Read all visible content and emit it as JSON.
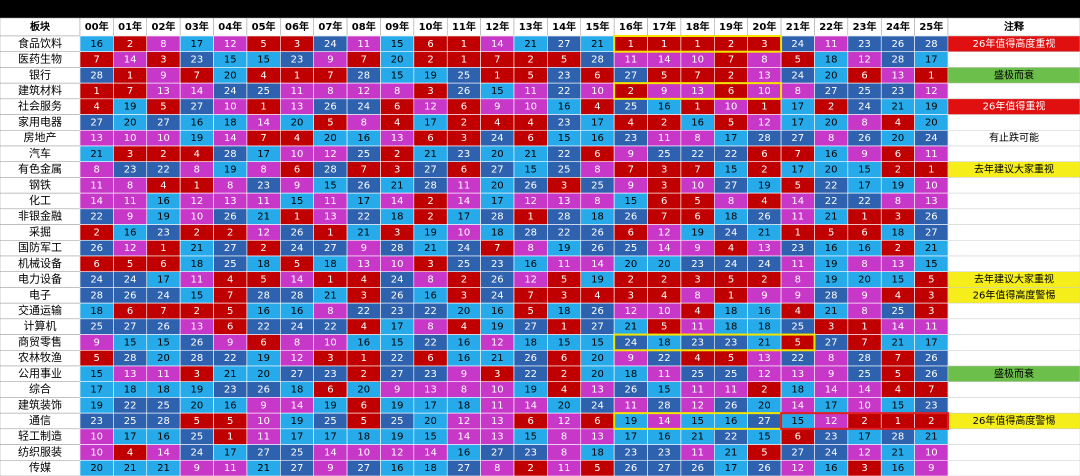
{
  "table": {
    "columns": [
      "板块",
      "00年",
      "01年",
      "02年",
      "03年",
      "04年",
      "05年",
      "06年",
      "07年",
      "08年",
      "09年",
      "10年",
      "11年",
      "12年",
      "13年",
      "14年",
      "15年",
      "16年",
      "17年",
      "18年",
      "19年",
      "20年",
      "21年",
      "22年",
      "23年",
      "24年",
      "25年",
      "注释"
    ],
    "rank_colors": [
      "#c00000",
      "#c838c8",
      "#26aaea",
      "#2e62ae"
    ],
    "rows": [
      {
        "name": "食品饮料",
        "values": [
          16,
          2,
          8,
          17,
          12,
          5,
          3,
          24,
          11,
          15,
          6,
          1,
          14,
          21,
          27,
          21,
          1,
          1,
          1,
          2,
          3,
          24,
          11,
          23,
          26,
          28
        ],
        "note": "26年值得高度重视",
        "note_color": "#e01010"
      },
      {
        "name": "医药生物",
        "values": [
          7,
          14,
          3,
          23,
          15,
          15,
          23,
          9,
          7,
          20,
          2,
          1,
          7,
          2,
          5,
          28,
          11,
          14,
          10,
          7,
          8,
          5,
          18,
          12,
          28,
          17
        ]
      },
      {
        "name": "银行",
        "values": [
          28,
          1,
          9,
          7,
          20,
          4,
          1,
          7,
          28,
          15,
          19,
          25,
          1,
          5,
          23,
          6,
          27,
          5,
          7,
          2,
          13,
          24,
          20,
          6,
          13,
          1
        ],
        "note": "盛极而衰",
        "note_color": "#6cbf4a"
      },
      {
        "name": "建筑材料",
        "values": [
          1,
          7,
          13,
          14,
          24,
          25,
          11,
          8,
          12,
          8,
          3,
          26,
          15,
          11,
          22,
          10,
          2,
          9,
          13,
          6,
          10,
          8,
          27,
          25,
          23,
          12
        ]
      },
      {
        "name": "社会服务",
        "values": [
          4,
          19,
          5,
          27,
          10,
          1,
          13,
          26,
          24,
          6,
          12,
          6,
          9,
          10,
          16,
          4,
          25,
          16,
          1,
          10,
          1,
          17,
          2,
          24,
          21,
          19
        ],
        "note": "26年值得重视",
        "note_color": "#e01010"
      },
      {
        "name": "家用电器",
        "values": [
          27,
          20,
          27,
          16,
          18,
          14,
          20,
          5,
          8,
          4,
          17,
          2,
          4,
          4,
          23,
          17,
          4,
          2,
          16,
          5,
          12,
          17,
          20,
          8,
          4,
          20
        ]
      },
      {
        "name": "房地产",
        "values": [
          13,
          10,
          10,
          19,
          14,
          7,
          4,
          20,
          16,
          13,
          6,
          3,
          24,
          6,
          15,
          16,
          23,
          11,
          8,
          17,
          28,
          27,
          8,
          26,
          20,
          24
        ],
        "note": "有止跌可能",
        "note_color": "#ffffff"
      },
      {
        "name": "汽车",
        "values": [
          21,
          3,
          2,
          4,
          28,
          17,
          10,
          12,
          25,
          2,
          21,
          23,
          20,
          21,
          22,
          6,
          9,
          25,
          22,
          22,
          6,
          7,
          16,
          9,
          6,
          11
        ]
      },
      {
        "name": "有色金属",
        "values": [
          8,
          23,
          22,
          8,
          19,
          8,
          6,
          28,
          7,
          3,
          27,
          6,
          27,
          15,
          25,
          8,
          7,
          3,
          7,
          15,
          2,
          17,
          20,
          15,
          2,
          1
        ],
        "note": "去年建议大家重视",
        "note_color": "#f5ee1a"
      },
      {
        "name": "钢铁",
        "values": [
          11,
          8,
          4,
          1,
          8,
          23,
          9,
          15,
          26,
          21,
          28,
          11,
          20,
          26,
          3,
          25,
          9,
          3,
          10,
          27,
          19,
          5,
          22,
          17,
          19,
          10
        ]
      },
      {
        "name": "化工",
        "values": [
          14,
          11,
          16,
          12,
          13,
          11,
          15,
          11,
          17,
          14,
          2,
          14,
          17,
          12,
          13,
          8,
          15,
          6,
          5,
          8,
          4,
          14,
          22,
          22,
          8,
          13
        ]
      },
      {
        "name": "非银金融",
        "values": [
          22,
          9,
          19,
          10,
          26,
          21,
          1,
          13,
          22,
          18,
          2,
          17,
          28,
          1,
          28,
          18,
          26,
          7,
          6,
          18,
          26,
          11,
          21,
          1,
          3,
          26
        ]
      },
      {
        "name": "采掘",
        "values": [
          2,
          16,
          23,
          2,
          2,
          12,
          26,
          1,
          21,
          3,
          19,
          10,
          18,
          28,
          22,
          26,
          6,
          12,
          19,
          24,
          21,
          1,
          5,
          6,
          18,
          27
        ]
      },
      {
        "name": "国防军工",
        "values": [
          26,
          12,
          1,
          21,
          27,
          2,
          24,
          27,
          9,
          28,
          21,
          24,
          7,
          8,
          19,
          26,
          25,
          14,
          9,
          4,
          13,
          23,
          16,
          16,
          2,
          21
        ]
      },
      {
        "name": "机械设备",
        "values": [
          6,
          5,
          6,
          18,
          25,
          18,
          5,
          18,
          13,
          10,
          3,
          25,
          23,
          16,
          11,
          14,
          20,
          20,
          23,
          24,
          24,
          11,
          19,
          8,
          13,
          15
        ]
      },
      {
        "name": "电力设备",
        "values": [
          24,
          24,
          17,
          11,
          4,
          5,
          14,
          1,
          4,
          24,
          8,
          2,
          26,
          12,
          5,
          19,
          2,
          2,
          3,
          5,
          2,
          8,
          19,
          20,
          15,
          5
        ],
        "note": "去年建议大家重视",
        "note_color": "#f5ee1a"
      },
      {
        "name": "电子",
        "values": [
          28,
          26,
          24,
          15,
          7,
          28,
          28,
          21,
          3,
          26,
          16,
          3,
          24,
          7,
          3,
          4,
          3,
          4,
          8,
          1,
          9,
          9,
          28,
          9,
          4,
          3
        ],
        "note": "26年值得高度警惕",
        "note_color": "#f5ee1a"
      },
      {
        "name": "交通运输",
        "values": [
          18,
          6,
          7,
          2,
          5,
          16,
          16,
          8,
          22,
          23,
          22,
          20,
          16,
          5,
          18,
          26,
          12,
          10,
          4,
          18,
          16,
          4,
          21,
          8,
          25,
          3
        ]
      },
      {
        "name": "计算机",
        "values": [
          25,
          27,
          26,
          13,
          6,
          22,
          24,
          22,
          4,
          17,
          8,
          4,
          19,
          27,
          1,
          27,
          21,
          5,
          11,
          18,
          18,
          25,
          3,
          1,
          14,
          11
        ]
      },
      {
        "name": "商贸零售",
        "values": [
          9,
          15,
          15,
          26,
          9,
          6,
          8,
          10,
          16,
          15,
          22,
          16,
          12,
          18,
          15,
          15,
          24,
          18,
          23,
          23,
          21,
          5,
          27,
          7,
          21,
          17
        ]
      },
      {
        "name": "农林牧渔",
        "values": [
          5,
          28,
          20,
          28,
          22,
          19,
          12,
          3,
          1,
          22,
          6,
          16,
          21,
          26,
          6,
          20,
          9,
          22,
          4,
          5,
          13,
          22,
          8,
          28,
          7,
          26
        ]
      },
      {
        "name": "公用事业",
        "values": [
          15,
          13,
          11,
          3,
          21,
          20,
          27,
          23,
          2,
          27,
          23,
          9,
          3,
          22,
          2,
          20,
          18,
          11,
          25,
          25,
          12,
          13,
          9,
          25,
          5,
          26
        ],
        "note": "盛极而衰",
        "note_color": "#6cbf4a"
      },
      {
        "name": "综合",
        "values": [
          17,
          18,
          18,
          19,
          23,
          26,
          18,
          6,
          20,
          9,
          13,
          8,
          10,
          19,
          4,
          13,
          26,
          15,
          11,
          11,
          2,
          18,
          14,
          14,
          4,
          7
        ]
      },
      {
        "name": "建筑装饰",
        "values": [
          19,
          22,
          25,
          20,
          16,
          9,
          14,
          19,
          6,
          19,
          17,
          18,
          11,
          14,
          20,
          24,
          11,
          28,
          12,
          26,
          20,
          14,
          17,
          10,
          15,
          23
        ]
      },
      {
        "name": "通信",
        "values": [
          23,
          25,
          28,
          5,
          5,
          10,
          19,
          25,
          5,
          25,
          20,
          12,
          13,
          6,
          12,
          6,
          19,
          14,
          15,
          16,
          27,
          15,
          12,
          2,
          1,
          2
        ],
        "note": "26年值得高度警惕",
        "note_color": "#f5ee1a"
      },
      {
        "name": "轻工制造",
        "values": [
          10,
          17,
          16,
          25,
          1,
          11,
          17,
          17,
          18,
          19,
          15,
          14,
          13,
          15,
          8,
          13,
          17,
          16,
          21,
          22,
          15,
          6,
          23,
          17,
          28,
          21
        ]
      },
      {
        "name": "纺织服装",
        "values": [
          10,
          4,
          14,
          24,
          17,
          27,
          25,
          14,
          10,
          12,
          14,
          16,
          27,
          23,
          8,
          18,
          23,
          23,
          11,
          21,
          5,
          27,
          24,
          12,
          21,
          10
        ]
      },
      {
        "name": "传媒",
        "values": [
          20,
          21,
          21,
          9,
          11,
          21,
          27,
          9,
          27,
          16,
          18,
          27,
          8,
          2,
          11,
          5,
          26,
          27,
          26,
          17,
          26,
          12,
          16,
          3,
          16,
          9
        ]
      }
    ]
  }
}
